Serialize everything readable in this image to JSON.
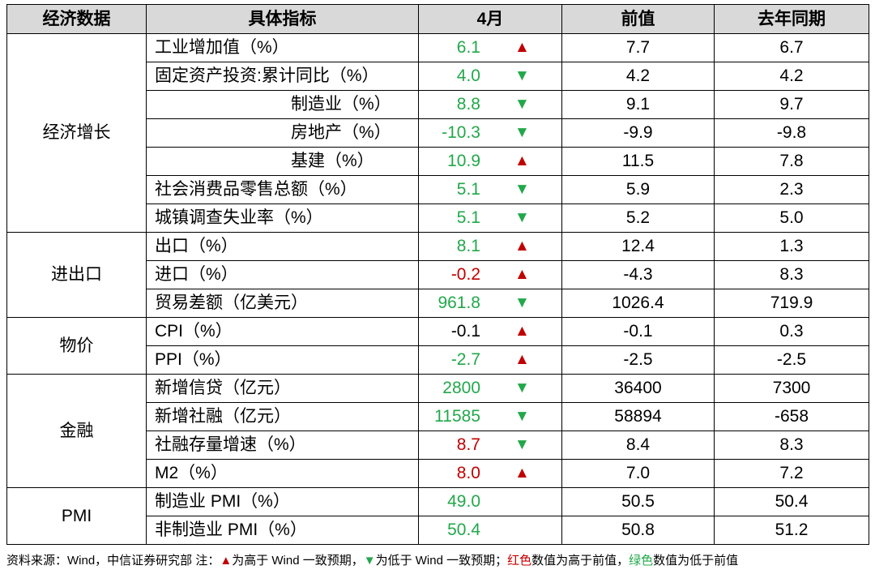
{
  "header": {
    "col1": "经济数据",
    "col2": "具体指标",
    "col3": "4月",
    "col4": "前值",
    "col5": "去年同期"
  },
  "categories": {
    "growth": "经济增长",
    "trade": "进出口",
    "prices": "物价",
    "finance": "金融",
    "pmi": "PMI"
  },
  "rows": [
    {
      "indicator": "工业增加值（%）",
      "current": "6.1",
      "color": "green",
      "arrow": "▲",
      "dir": "up",
      "prev": "7.7",
      "last_year": "6.7"
    },
    {
      "indicator": "固定资产投资:累计同比（%）",
      "current": "4.0",
      "color": "green",
      "arrow": "▼",
      "dir": "down",
      "prev": "4.2",
      "last_year": "4.2"
    },
    {
      "indicator": "制造业（%）",
      "current": "8.8",
      "color": "green",
      "arrow": "▼",
      "dir": "down",
      "prev": "9.1",
      "last_year": "9.7"
    },
    {
      "indicator": "房地产（%）",
      "current": "-10.3",
      "color": "green",
      "arrow": "▼",
      "dir": "down",
      "prev": "-9.9",
      "last_year": "-9.8"
    },
    {
      "indicator": "基建（%）",
      "current": "10.9",
      "color": "green",
      "arrow": "▲",
      "dir": "up",
      "prev": "11.5",
      "last_year": "7.8"
    },
    {
      "indicator": "社会消费品零售总额（%）",
      "current": "5.1",
      "color": "green",
      "arrow": "▼",
      "dir": "down",
      "prev": "5.9",
      "last_year": "2.3"
    },
    {
      "indicator": "城镇调查失业率（%）",
      "current": "5.1",
      "color": "green",
      "arrow": "▼",
      "dir": "down",
      "prev": "5.2",
      "last_year": "5.0"
    },
    {
      "indicator": "出口（%）",
      "current": "8.1",
      "color": "green",
      "arrow": "▲",
      "dir": "up",
      "prev": "12.4",
      "last_year": "1.3"
    },
    {
      "indicator": "进口（%）",
      "current": "-0.2",
      "color": "red",
      "arrow": "▲",
      "dir": "up",
      "prev": "-4.3",
      "last_year": "8.3"
    },
    {
      "indicator": "贸易差额（亿美元）",
      "current": "961.8",
      "color": "green",
      "arrow": "▼",
      "dir": "down",
      "prev": "1026.4",
      "last_year": "719.9"
    },
    {
      "indicator": "CPI（%）",
      "current": "-0.1",
      "color": "black",
      "arrow": "▲",
      "dir": "up",
      "prev": "-0.1",
      "last_year": "0.3"
    },
    {
      "indicator": "PPI（%）",
      "current": "-2.7",
      "color": "green",
      "arrow": "▲",
      "dir": "up",
      "prev": "-2.5",
      "last_year": "-2.5"
    },
    {
      "indicator": "新增信贷（亿元）",
      "current": "2800",
      "color": "green",
      "arrow": "▼",
      "dir": "down",
      "prev": "36400",
      "last_year": "7300"
    },
    {
      "indicator": "新增社融（亿元）",
      "current": "11585",
      "color": "green",
      "arrow": "▼",
      "dir": "down",
      "prev": "58894",
      "last_year": "-658"
    },
    {
      "indicator": "社融存量增速（%）",
      "current": "8.7",
      "color": "red",
      "arrow": "▼",
      "dir": "down",
      "prev": "8.4",
      "last_year": "8.3"
    },
    {
      "indicator": "M2（%）",
      "current": "8.0",
      "color": "red",
      "arrow": "▲",
      "dir": "up",
      "prev": "7.0",
      "last_year": "7.2"
    },
    {
      "indicator": "制造业 PMI（%）",
      "current": "49.0",
      "color": "green",
      "arrow": "",
      "dir": "none",
      "prev": "50.5",
      "last_year": "50.4"
    },
    {
      "indicator": "非制造业 PMI（%）",
      "current": "50.4",
      "color": "green",
      "arrow": "",
      "dir": "none",
      "prev": "50.8",
      "last_year": "51.2"
    }
  ],
  "footnote": {
    "source": "资料来源：Wind，中信证券研究部  注：",
    "up_arrow": "▲",
    "up_text": "为高于 Wind 一致预期，",
    "down_arrow": "▼",
    "down_text": "为低于 Wind 一致预期；",
    "red_word": "红色",
    "red_text": "数值为高于前值，",
    "green_word": "绿色",
    "green_text": "数值为低于前值"
  },
  "colors": {
    "red": "#c00000",
    "green": "#22a84a",
    "header_bg": "#d9d9d9"
  }
}
